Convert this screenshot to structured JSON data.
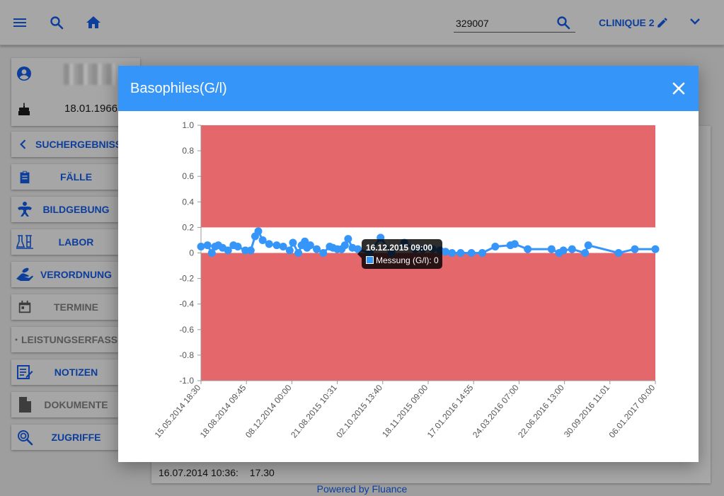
{
  "topbar": {
    "search_value": "329007",
    "clinic_label": "CLINIQUE 2",
    "icons": [
      "menu-icon",
      "search-icon",
      "home-icon",
      "search-icon",
      "pencil-icon",
      "chevron-down-icon"
    ]
  },
  "patient": {
    "birth_date": "18.01.1966",
    "icons": [
      "account-circle-icon",
      "birthday-cake-icon"
    ]
  },
  "nav": [
    {
      "label": "SUCHERGEBNISSE",
      "icon": "chevron-left-icon",
      "style": "primary"
    },
    {
      "label": "FÄLLE",
      "icon": "clipboard-icon",
      "style": "primary"
    },
    {
      "label": "BILDGEBUNG",
      "icon": "skeleton-icon",
      "style": "primary"
    },
    {
      "label": "LABOR",
      "icon": "lab-flask-icon",
      "style": "primary"
    },
    {
      "label": "VERORDNUNG",
      "icon": "medication-hand-icon",
      "style": "primary"
    },
    {
      "label": "TERMINE",
      "icon": "calendar-icon",
      "style": "disabled"
    },
    {
      "label": "LEISTUNGSERFASSUNG",
      "icon": "",
      "style": "disabled"
    },
    {
      "label": "NOTIZEN",
      "icon": "notes-icon",
      "style": "primary"
    },
    {
      "label": "DOKUMENTE",
      "icon": "document-icon",
      "style": "disabled"
    },
    {
      "label": "ZUGRIFFE",
      "icon": "access-search-icon",
      "style": "primary"
    }
  ],
  "background_row": {
    "date": "16.07.2014 10:36:",
    "value": "17.30"
  },
  "footer": "Powered by Fluance",
  "modal": {
    "title": "Basophiles(G/l)"
  },
  "tooltip": {
    "title": "16.12.2015 09:00",
    "body": "Messung (G/l): 0"
  },
  "colors": {
    "accent": "#3595f8",
    "out_of_range": "#e4676b",
    "brand_text": "#0d3e9c"
  },
  "chart_data": {
    "type": "line",
    "title": "",
    "xlabel": "",
    "ylabel": "",
    "ylim": [
      -1.0,
      1.0
    ],
    "yticks": [
      1.0,
      0.8,
      0.6,
      0.4,
      0.2,
      0,
      -0.2,
      -0.4,
      -0.6,
      -0.8,
      -1.0
    ],
    "xticks": [
      "15.05.2014 18:30",
      "18.08.2014 09:45",
      "08.12.2014 00:00",
      "21.08.2015 10:31",
      "02.10.2015 13:40",
      "18.11.2015 09:00",
      "17.01.2016 14:55",
      "24.03.2016 07:00",
      "22.06.2016 13:00",
      "30.09.2016 11:01",
      "06.01.2017 00:00"
    ],
    "normal_range": [
      0,
      0.2
    ],
    "grid": false,
    "legend": "none",
    "series": [
      {
        "name": "Messung (G/l)",
        "points": [
          [
            0.0,
            0.05
          ],
          [
            0.6,
            0.06
          ],
          [
            1.0,
            0.0
          ],
          [
            1.3,
            0.05
          ],
          [
            1.6,
            0.06
          ],
          [
            2.0,
            0.04
          ],
          [
            2.5,
            0.02
          ],
          [
            3.0,
            0.06
          ],
          [
            3.4,
            0.05
          ],
          [
            4.1,
            0.02
          ],
          [
            4.6,
            0.02
          ],
          [
            5.0,
            0.13
          ],
          [
            5.3,
            0.17
          ],
          [
            5.7,
            0.1
          ],
          [
            6.3,
            0.07
          ],
          [
            7.0,
            0.06
          ],
          [
            7.6,
            0.05
          ],
          [
            8.2,
            0.02
          ],
          [
            8.5,
            0.08
          ],
          [
            9.0,
            0.0
          ],
          [
            9.3,
            0.06
          ],
          [
            9.6,
            0.09
          ],
          [
            9.8,
            0.04
          ],
          [
            10.1,
            0.06
          ],
          [
            10.7,
            0.03
          ],
          [
            11.3,
            0.0
          ],
          [
            11.9,
            0.05
          ],
          [
            12.2,
            0.04
          ],
          [
            12.6,
            0.03
          ],
          [
            13.0,
            0.03
          ],
          [
            13.3,
            0.06
          ],
          [
            13.6,
            0.11
          ],
          [
            14.0,
            0.04
          ],
          [
            14.5,
            0.03
          ],
          [
            15.6,
            0.0
          ],
          [
            16.6,
            0.12
          ],
          [
            17.6,
            0.0
          ],
          [
            18.8,
            0.08
          ],
          [
            19.8,
            0.03
          ],
          [
            20.5,
            0.03
          ],
          [
            21.4,
            0.03
          ],
          [
            22.1,
            0.02
          ],
          [
            22.6,
            0.01
          ],
          [
            23.2,
            0.0
          ],
          [
            24.0,
            0.0
          ],
          [
            25.0,
            0.0
          ],
          [
            26.0,
            0.0
          ],
          [
            27.2,
            0.05
          ],
          [
            28.6,
            0.06
          ],
          [
            29.0,
            0.07
          ],
          [
            30.2,
            0.03
          ],
          [
            32.4,
            0.03
          ],
          [
            33.1,
            0.0
          ],
          [
            33.5,
            0.02
          ],
          [
            34.3,
            0.03
          ],
          [
            35.5,
            0.0
          ],
          [
            35.8,
            0.06
          ],
          [
            38.6,
            0.0
          ],
          [
            40.1,
            0.03
          ],
          [
            42.0,
            0.03
          ]
        ]
      }
    ]
  }
}
